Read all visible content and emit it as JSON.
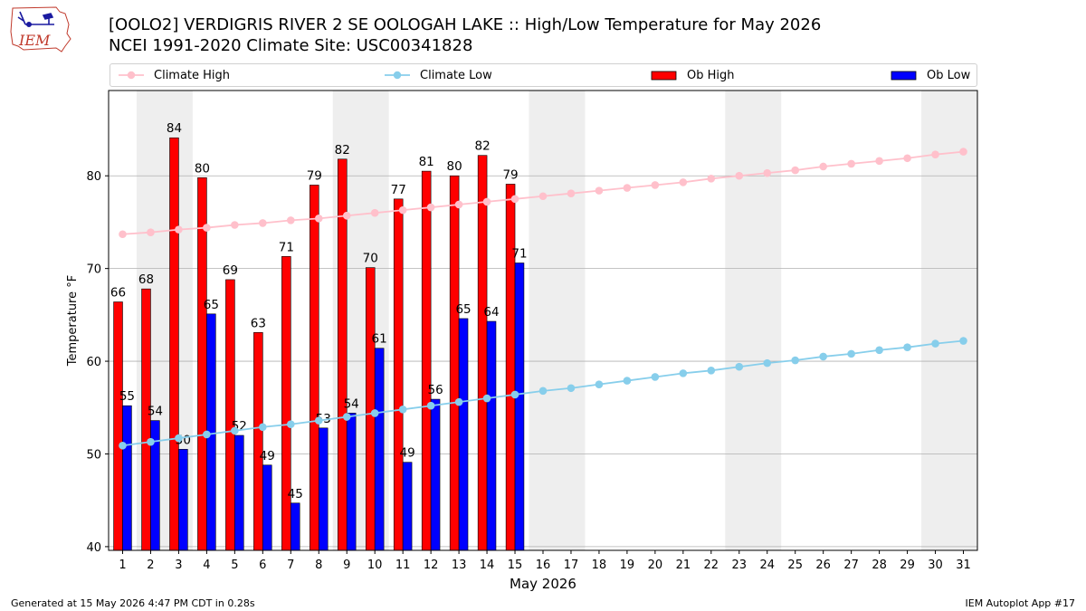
{
  "header": {
    "title_line1": "[OOLO2] VERDIGRIS RIVER 2 SE OOLOGAH LAKE :: High/Low Temperature for May 2026",
    "title_line2": "NCEI 1991-2020 Climate Site: USC00341828"
  },
  "logo": {
    "text": "IEM"
  },
  "footer": {
    "left": "Generated at 15 May 2026 4:47 PM CDT in 0.28s",
    "right": "IEM Autoplot App #17"
  },
  "chart_data": {
    "type": "bar",
    "xlabel": "May 2026",
    "ylabel": "Temperature °F",
    "ylim": [
      39.6,
      89.2
    ],
    "yticks": [
      40,
      50,
      60,
      70,
      80
    ],
    "grid": "horizontal",
    "legend_position": "top",
    "days": [
      1,
      2,
      3,
      4,
      5,
      6,
      7,
      8,
      9,
      10,
      11,
      12,
      13,
      14,
      15,
      16,
      17,
      18,
      19,
      20,
      21,
      22,
      23,
      24,
      25,
      26,
      27,
      28,
      29,
      30,
      31
    ],
    "weekend_shading_pairs": [
      [
        2,
        3
      ],
      [
        9,
        10
      ],
      [
        16,
        17
      ],
      [
        23,
        24
      ],
      [
        30,
        31
      ]
    ],
    "series": [
      {
        "name": "Climate High",
        "kind": "line",
        "color": "#ffc0cb",
        "values": [
          73.7,
          73.9,
          74.2,
          74.4,
          74.7,
          74.9,
          75.2,
          75.4,
          75.7,
          76.0,
          76.3,
          76.6,
          76.9,
          77.2,
          77.5,
          77.8,
          78.1,
          78.4,
          78.7,
          79.0,
          79.3,
          79.7,
          80.0,
          80.3,
          80.6,
          81.0,
          81.3,
          81.6,
          81.9,
          82.3,
          82.6
        ]
      },
      {
        "name": "Climate Low",
        "kind": "line",
        "color": "#87ceeb",
        "values": [
          50.9,
          51.3,
          51.7,
          52.1,
          52.5,
          52.9,
          53.2,
          53.6,
          54.0,
          54.4,
          54.8,
          55.2,
          55.6,
          56.0,
          56.4,
          56.8,
          57.1,
          57.5,
          57.9,
          58.3,
          58.7,
          59.0,
          59.4,
          59.8,
          60.1,
          60.5,
          60.8,
          61.2,
          61.5,
          61.9,
          62.2
        ]
      },
      {
        "name": "Ob High",
        "kind": "bar",
        "color": "#ff0000",
        "values": [
          66.4,
          67.8,
          84.1,
          79.8,
          68.8,
          63.1,
          71.3,
          79.0,
          81.8,
          70.1,
          77.5,
          80.5,
          80.0,
          82.2,
          79.1
        ],
        "labels": [
          "66",
          "68",
          "84",
          "80",
          "69",
          "63",
          "71",
          "79",
          "82",
          "70",
          "77",
          "81",
          "80",
          "82",
          "79"
        ]
      },
      {
        "name": "Ob Low",
        "kind": "bar",
        "color": "#0000ff",
        "values": [
          55.2,
          53.6,
          50.5,
          65.1,
          52.0,
          48.8,
          44.7,
          52.8,
          54.4,
          61.4,
          49.1,
          55.9,
          64.6,
          64.3,
          70.6
        ],
        "labels": [
          "55",
          "54",
          "50",
          "65",
          "52",
          "49",
          "45",
          "53",
          "54",
          "61",
          "49",
          "56",
          "65",
          "64",
          "71"
        ]
      }
    ]
  }
}
